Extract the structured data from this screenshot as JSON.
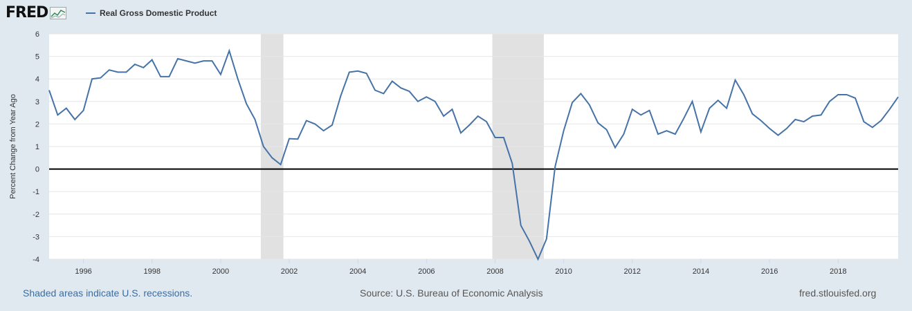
{
  "header": {
    "logo_text": "FRED",
    "logo_icon": "chart-line-icon",
    "series_color": "#4572a7"
  },
  "footer": {
    "recession_note": "Shaded areas indicate U.S. recessions.",
    "source": "Source: U.S. Bureau of Economic Analysis",
    "website": "fred.stlouisfed.org"
  },
  "chart_data": {
    "type": "line",
    "title": "",
    "xlabel": "",
    "ylabel": "Percent Change from Year Ago",
    "xlim": [
      1995.0,
      2019.75
    ],
    "ylim": [
      -4,
      6
    ],
    "yticks": [
      6,
      5,
      4,
      3,
      2,
      1,
      0,
      -1,
      -2,
      -3,
      -4
    ],
    "xticks": [
      1996,
      1998,
      2000,
      2002,
      2004,
      2006,
      2008,
      2010,
      2012,
      2014,
      2016,
      2018
    ],
    "grid": true,
    "legend": "top-left",
    "zero_line": true,
    "recessions": [
      [
        2001.17,
        2001.83
      ],
      [
        2007.92,
        2009.42
      ]
    ],
    "series": [
      {
        "name": "Real Gross Domestic Product",
        "color": "#4572a7",
        "x": [
          1995.0,
          1995.25,
          1995.5,
          1995.75,
          1996.0,
          1996.25,
          1996.5,
          1996.75,
          1997.0,
          1997.25,
          1997.5,
          1997.75,
          1998.0,
          1998.25,
          1998.5,
          1998.75,
          1999.0,
          1999.25,
          1999.5,
          1999.75,
          2000.0,
          2000.25,
          2000.5,
          2000.75,
          2001.0,
          2001.25,
          2001.5,
          2001.75,
          2002.0,
          2002.25,
          2002.5,
          2002.75,
          2003.0,
          2003.25,
          2003.5,
          2003.75,
          2004.0,
          2004.25,
          2004.5,
          2004.75,
          2005.0,
          2005.25,
          2005.5,
          2005.75,
          2006.0,
          2006.25,
          2006.5,
          2006.75,
          2007.0,
          2007.25,
          2007.5,
          2007.75,
          2008.0,
          2008.25,
          2008.5,
          2008.75,
          2009.0,
          2009.25,
          2009.5,
          2009.75,
          2010.0,
          2010.25,
          2010.5,
          2010.75,
          2011.0,
          2011.25,
          2011.5,
          2011.75,
          2012.0,
          2012.25,
          2012.5,
          2012.75,
          2013.0,
          2013.25,
          2013.5,
          2013.75,
          2014.0,
          2014.25,
          2014.5,
          2014.75,
          2015.0,
          2015.25,
          2015.5,
          2015.75,
          2016.0,
          2016.25,
          2016.5,
          2016.75,
          2017.0,
          2017.25,
          2017.5,
          2017.75,
          2018.0,
          2018.25,
          2018.5,
          2018.75,
          2019.0,
          2019.25,
          2019.5,
          2019.75
        ],
        "y": [
          3.5,
          2.4,
          2.7,
          2.2,
          2.6,
          4.0,
          4.05,
          4.4,
          4.3,
          4.3,
          4.65,
          4.5,
          4.85,
          4.1,
          4.1,
          4.9,
          4.8,
          4.7,
          4.8,
          4.8,
          4.2,
          5.25,
          4.0,
          2.9,
          2.2,
          1.0,
          0.5,
          0.2,
          1.35,
          1.33,
          2.15,
          2.0,
          1.7,
          1.95,
          3.25,
          4.3,
          4.35,
          4.25,
          3.5,
          3.35,
          3.9,
          3.6,
          3.45,
          3.0,
          3.2,
          3.0,
          2.35,
          2.65,
          1.6,
          1.95,
          2.35,
          2.1,
          1.4,
          1.4,
          0.25,
          -2.5,
          -3.2,
          -4.0,
          -3.1,
          0.1,
          1.7,
          2.95,
          3.35,
          2.85,
          2.05,
          1.75,
          0.95,
          1.55,
          2.65,
          2.4,
          2.6,
          1.55,
          1.7,
          1.55,
          2.25,
          3.0,
          1.65,
          2.7,
          3.05,
          2.7,
          3.95,
          3.3,
          2.45,
          2.15,
          1.8,
          1.5,
          1.8,
          2.2,
          2.1,
          2.35,
          2.4,
          3.0,
          3.3,
          3.3,
          3.15,
          2.1,
          1.85,
          2.15,
          2.65,
          3.2
        ]
      }
    ]
  }
}
